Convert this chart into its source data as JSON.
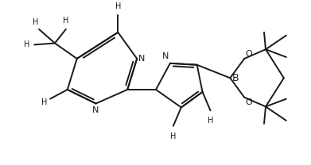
{
  "background_color": "#ffffff",
  "line_color": "#1a1a1a",
  "line_width": 1.4,
  "figsize": [
    3.91,
    2.08
  ],
  "dpi": 100,
  "xlim": [
    0,
    391
  ],
  "ylim": [
    0,
    208
  ]
}
